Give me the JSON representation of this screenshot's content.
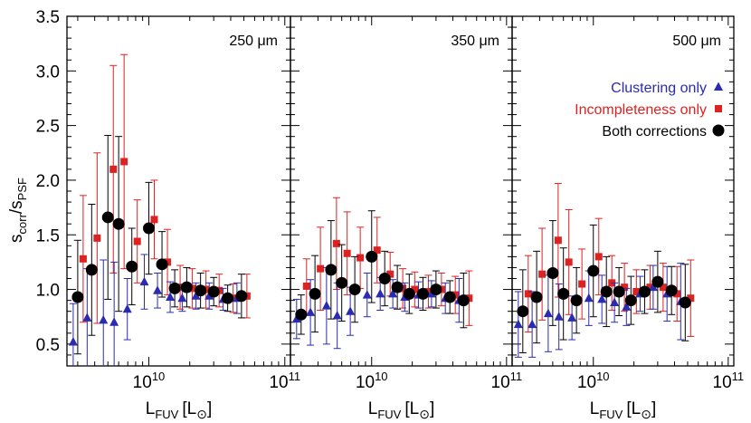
{
  "chart_data": {
    "type": "scatter",
    "x_scale": "log",
    "y_range": [
      0.3,
      3.5
    ],
    "x_range": [
      2500000000.0,
      110000000000.0
    ],
    "y_ticks": [
      "0.5",
      "1.0",
      "1.5",
      "2.0",
      "2.5",
      "3.0",
      "3.5"
    ],
    "y_label_main": "s",
    "y_label_num_sub": "corr",
    "y_label_sep": "/s",
    "y_label_den_sub": "PSF",
    "x_label_main": "L",
    "x_label_sub": "FUV",
    "x_label_unit": "[L",
    "x_label_sun": "⊙",
    "x_label_close": "]",
    "x_tick_labels": [
      {
        "value": 10000000000.0,
        "base": "10",
        "exp": "10"
      },
      {
        "value": 100000000000.0,
        "base": "10",
        "exp": "11"
      }
    ],
    "legend": {
      "placement": "upper-right of third panel",
      "items": [
        {
          "label": "Clustering only",
          "color": "#2b2bb0",
          "marker": "triangle"
        },
        {
          "label": "Incompleteness only",
          "color": "#dd2222",
          "marker": "square"
        },
        {
          "label": "Both corrections",
          "color": "#000000",
          "marker": "circle"
        }
      ]
    },
    "series_styles": {
      "clustering": {
        "color": "#2b2bb0",
        "marker": "triangle"
      },
      "incompleteness": {
        "color": "#dd2222",
        "marker": "square"
      },
      "both": {
        "color": "#000000",
        "marker": "circle"
      }
    },
    "panels": [
      {
        "label": "250 μm",
        "x": [
          3000000000.0,
          3800000000.0,
          5000000000.0,
          6000000000.0,
          7500000000.0,
          10000000000.0,
          12500000000.0,
          15500000000.0,
          19000000000.0,
          24000000000.0,
          30000000000.0,
          38000000000.0,
          48000000000.0
        ],
        "clustering": {
          "y": [
            0.52,
            0.74,
            0.72,
            0.7,
            0.82,
            1.07,
            0.99,
            0.93,
            0.92,
            0.94,
            0.94,
            0.91,
            0.92
          ],
          "err": [
            0.35,
            0.45,
            0.55,
            0.55,
            0.28,
            0.25,
            0.16,
            0.14,
            0.12,
            0.12,
            0.12,
            0.1,
            0.14
          ]
        },
        "incompleteness": {
          "y": [
            1.28,
            1.47,
            2.1,
            2.17,
            1.44,
            1.64,
            1.25,
            1.02,
            1.01,
            1.0,
            0.99,
            0.92,
            0.94
          ],
          "err": [
            0.58,
            0.78,
            0.95,
            0.98,
            0.38,
            0.36,
            0.3,
            0.2,
            0.18,
            0.17,
            0.15,
            0.13,
            0.2
          ]
        },
        "both": {
          "y": [
            0.93,
            1.18,
            1.66,
            1.6,
            1.21,
            1.56,
            1.23,
            1.01,
            1.02,
            0.99,
            0.98,
            0.92,
            0.94
          ],
          "err": [
            0.52,
            0.6,
            0.75,
            0.8,
            0.35,
            0.42,
            0.3,
            0.17,
            0.18,
            0.16,
            0.13,
            0.12,
            0.2
          ]
        }
      },
      {
        "label": "350 μm",
        "x": [
          3000000000.0,
          3800000000.0,
          5000000000.0,
          6000000000.0,
          7500000000.0,
          10000000000.0,
          12500000000.0,
          15500000000.0,
          19000000000.0,
          24000000000.0,
          30000000000.0,
          38000000000.0,
          48000000000.0
        ],
        "clustering": {
          "y": [
            0.73,
            0.79,
            0.85,
            0.76,
            0.8,
            0.95,
            0.96,
            0.96,
            0.93,
            0.95,
            0.96,
            0.92,
            0.9
          ],
          "err": [
            0.18,
            0.3,
            0.35,
            0.3,
            0.22,
            0.2,
            0.15,
            0.13,
            0.13,
            0.12,
            0.12,
            0.14,
            0.2
          ]
        },
        "incompleteness": {
          "y": [
            1.03,
            1.19,
            1.42,
            1.33,
            1.29,
            1.36,
            1.14,
            1.01,
            1.0,
            0.98,
            1.0,
            0.95,
            0.92
          ],
          "err": [
            0.25,
            0.38,
            0.42,
            0.38,
            0.28,
            0.3,
            0.2,
            0.18,
            0.16,
            0.15,
            0.15,
            0.17,
            0.25
          ]
        },
        "both": {
          "y": [
            0.77,
            0.96,
            1.18,
            1.06,
            1.0,
            1.3,
            1.1,
            1.02,
            0.96,
            0.96,
            1.0,
            0.93,
            0.9
          ],
          "err": [
            0.18,
            0.35,
            0.45,
            0.35,
            0.3,
            0.42,
            0.25,
            0.2,
            0.18,
            0.15,
            0.17,
            0.15,
            0.25
          ]
        }
      },
      {
        "label": "500 μm",
        "x": [
          3000000000.0,
          3800000000.0,
          5000000000.0,
          6000000000.0,
          7500000000.0,
          10000000000.0,
          12500000000.0,
          15500000000.0,
          19000000000.0,
          24000000000.0,
          30000000000.0,
          38000000000.0,
          48000000000.0
        ],
        "clustering": {
          "y": [
            0.68,
            0.68,
            0.78,
            0.75,
            0.74,
            0.92,
            0.91,
            0.88,
            0.84,
            0.96,
            1.02,
            0.96,
            0.89
          ],
          "err": [
            0.3,
            0.3,
            0.35,
            0.3,
            0.2,
            0.25,
            0.22,
            0.18,
            0.17,
            0.16,
            0.2,
            0.25,
            0.35
          ]
        },
        "incompleteness": {
          "y": [
            0.96,
            1.14,
            1.45,
            1.25,
            1.05,
            1.3,
            1.06,
            1.02,
            0.98,
            1.02,
            1.02,
            0.96,
            0.92
          ],
          "err": [
            0.35,
            0.42,
            0.52,
            0.48,
            0.32,
            0.35,
            0.25,
            0.22,
            0.2,
            0.2,
            0.22,
            0.25,
            0.35
          ]
        },
        "both": {
          "y": [
            0.8,
            0.93,
            1.15,
            0.96,
            0.9,
            1.17,
            0.98,
            0.98,
            0.9,
            0.98,
            1.07,
            0.99,
            0.88
          ],
          "err": [
            0.38,
            0.42,
            0.48,
            0.42,
            0.3,
            0.42,
            0.32,
            0.22,
            0.22,
            0.2,
            0.28,
            0.22,
            0.35
          ]
        }
      }
    ]
  }
}
